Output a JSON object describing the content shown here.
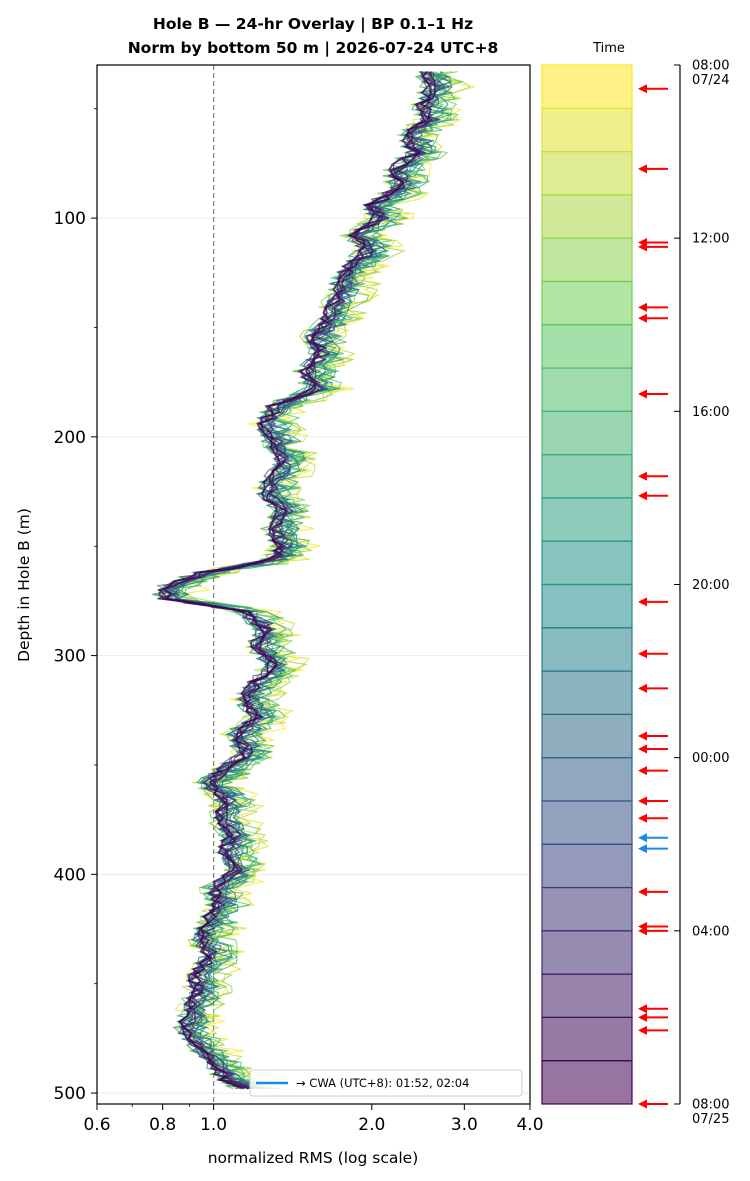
{
  "title_line1": "Hole B — 24-hr Overlay  |  BP 0.1–1 Hz",
  "title_line2": "Norm by bottom 50 m  |  2026-07-24 UTC+8",
  "chart_data": {
    "type": "line",
    "xlabel": "normalized RMS  (log scale)",
    "ylabel": "Depth in Hole B (m)",
    "xscale": "log",
    "xlim": [
      0.6,
      4.0
    ],
    "ylim": [
      505,
      30
    ],
    "x_tick_labels": [
      "0.6",
      "0.8",
      "1.0",
      "2.0",
      "3.0",
      "4.0"
    ],
    "x_ticks": [
      0.6,
      0.8,
      1.0,
      2.0,
      3.0,
      4.0
    ],
    "y_ticks": [
      100,
      200,
      300,
      400,
      500
    ],
    "y_tick_labels": [
      "100",
      "200",
      "300",
      "400",
      "500"
    ],
    "reference_line_x": 1.0,
    "series_count": 24,
    "series_color_scale": "viridis (07/24 08:00 yellow → 07/25 08:00 purple)",
    "median_profile": [
      [
        33,
        2.55
      ],
      [
        40,
        2.6
      ],
      [
        48,
        2.5
      ],
      [
        55,
        2.55
      ],
      [
        62,
        2.35
      ],
      [
        70,
        2.4
      ],
      [
        78,
        2.2
      ],
      [
        86,
        2.25
      ],
      [
        94,
        2.0
      ],
      [
        100,
        2.05
      ],
      [
        108,
        1.85
      ],
      [
        115,
        1.95
      ],
      [
        122,
        1.8
      ],
      [
        130,
        1.75
      ],
      [
        138,
        1.7
      ],
      [
        146,
        1.65
      ],
      [
        154,
        1.55
      ],
      [
        162,
        1.6
      ],
      [
        170,
        1.5
      ],
      [
        178,
        1.55
      ],
      [
        186,
        1.3
      ],
      [
        194,
        1.25
      ],
      [
        202,
        1.3
      ],
      [
        210,
        1.35
      ],
      [
        218,
        1.3
      ],
      [
        226,
        1.25
      ],
      [
        234,
        1.35
      ],
      [
        242,
        1.3
      ],
      [
        250,
        1.35
      ],
      [
        256,
        1.3
      ],
      [
        262,
        0.95
      ],
      [
        268,
        0.82
      ],
      [
        274,
        0.8
      ],
      [
        280,
        1.15
      ],
      [
        288,
        1.25
      ],
      [
        296,
        1.2
      ],
      [
        304,
        1.3
      ],
      [
        312,
        1.2
      ],
      [
        320,
        1.15
      ],
      [
        328,
        1.2
      ],
      [
        336,
        1.1
      ],
      [
        344,
        1.15
      ],
      [
        352,
        1.05
      ],
      [
        358,
        0.97
      ],
      [
        366,
        1.05
      ],
      [
        374,
        1.02
      ],
      [
        382,
        1.08
      ],
      [
        390,
        1.05
      ],
      [
        398,
        1.1
      ],
      [
        406,
        1.0
      ],
      [
        414,
        1.02
      ],
      [
        422,
        0.97
      ],
      [
        430,
        0.95
      ],
      [
        438,
        0.98
      ],
      [
        446,
        0.92
      ],
      [
        454,
        0.93
      ],
      [
        462,
        0.9
      ],
      [
        470,
        0.88
      ],
      [
        478,
        0.92
      ],
      [
        486,
        1.0
      ],
      [
        494,
        1.05
      ],
      [
        498,
        1.15
      ]
    ],
    "legend": {
      "label": "→ CWA (UTC+8): 01:52, 02:04",
      "position": "lower-right",
      "color": "#1e88e5"
    }
  },
  "colorbar": {
    "title": "Time",
    "band_count": 24,
    "colormap": "viridis",
    "time_ticks": [
      {
        "label": "08:00",
        "sub": "07/24",
        "hour": 0
      },
      {
        "label": "12:00",
        "sub": "",
        "hour": 4
      },
      {
        "label": "16:00",
        "sub": "",
        "hour": 8
      },
      {
        "label": "20:00",
        "sub": "",
        "hour": 12
      },
      {
        "label": "00:00",
        "sub": "",
        "hour": 16
      },
      {
        "label": "04:00",
        "sub": "",
        "hour": 20
      },
      {
        "label": "08:00",
        "sub": "07/25",
        "hour": 24
      }
    ],
    "event_arrows_red_hours": [
      0.55,
      2.4,
      4.1,
      4.2,
      5.6,
      5.85,
      7.6,
      9.5,
      9.95,
      12.4,
      13.6,
      14.4,
      15.5,
      15.8,
      16.3,
      17.0,
      17.4,
      19.1,
      19.9,
      20.0,
      21.8,
      22.0,
      22.3,
      24.0
    ],
    "event_arrows_blue_hours": [
      17.85,
      18.1
    ],
    "arrow_colors": {
      "red": "#ff0000",
      "blue": "#1e88e5"
    }
  }
}
